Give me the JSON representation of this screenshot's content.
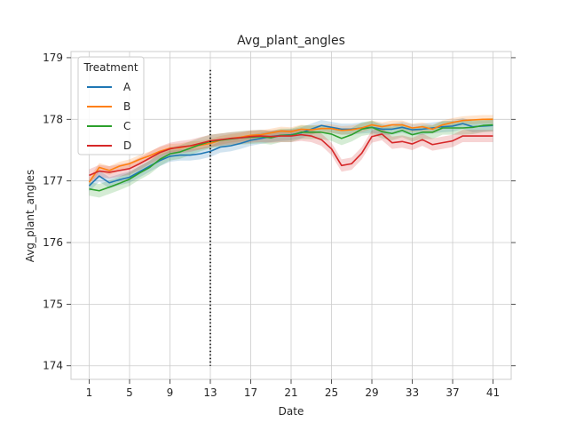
{
  "chart_data": {
    "type": "line",
    "title": "Avg_plant_angles",
    "xlabel": "Date",
    "ylabel": "Avg_plant_angles",
    "xlim": [
      -0.8,
      42.8
    ],
    "ylim": [
      173.78,
      179.1
    ],
    "xticks": [
      1,
      5,
      9,
      13,
      17,
      21,
      25,
      29,
      33,
      37,
      41
    ],
    "yticks": [
      174,
      175,
      176,
      177,
      178,
      179
    ],
    "grid": true,
    "legend": {
      "title": "Treatment",
      "placement": "top-left"
    },
    "vline": {
      "x": 13,
      "y_range": [
        174,
        178.8
      ],
      "style": "dotted",
      "color": "#000000"
    },
    "series": [
      {
        "name": "A",
        "color": "#1f77b4",
        "x": [
          1,
          2,
          3,
          4,
          5,
          6,
          7,
          8,
          9,
          10,
          11,
          12,
          13,
          14,
          15,
          16,
          17,
          18,
          19,
          20,
          21,
          22,
          23,
          24,
          25,
          26,
          27,
          28,
          29,
          30,
          31,
          32,
          33,
          34,
          35,
          36,
          37,
          38,
          39,
          40,
          41
        ],
        "values": [
          176.92,
          177.08,
          176.97,
          177.02,
          177.06,
          177.15,
          177.24,
          177.33,
          177.4,
          177.42,
          177.42,
          177.44,
          177.48,
          177.55,
          177.57,
          177.61,
          177.66,
          177.69,
          177.72,
          177.74,
          177.75,
          177.78,
          177.84,
          177.9,
          177.87,
          177.84,
          177.84,
          177.86,
          177.87,
          177.84,
          177.84,
          177.87,
          177.83,
          177.84,
          177.86,
          177.88,
          177.89,
          177.93,
          177.88,
          177.89,
          177.9
        ],
        "ci": 0.09
      },
      {
        "name": "B",
        "color": "#ff7f0e",
        "x": [
          1,
          2,
          3,
          4,
          5,
          6,
          7,
          8,
          9,
          10,
          11,
          12,
          13,
          14,
          15,
          16,
          17,
          18,
          19,
          20,
          21,
          22,
          23,
          24,
          25,
          26,
          27,
          28,
          29,
          30,
          31,
          32,
          33,
          34,
          35,
          36,
          37,
          38,
          39,
          40,
          41
        ],
        "values": [
          176.98,
          177.22,
          177.17,
          177.24,
          177.28,
          177.35,
          177.41,
          177.48,
          177.53,
          177.54,
          177.57,
          177.58,
          177.61,
          177.66,
          177.69,
          177.71,
          177.74,
          177.75,
          177.78,
          177.81,
          177.8,
          177.84,
          177.83,
          177.85,
          177.85,
          177.82,
          177.83,
          177.86,
          177.91,
          177.88,
          177.91,
          177.91,
          177.86,
          177.88,
          177.84,
          177.91,
          177.95,
          177.98,
          177.99,
          178.0,
          178.0
        ],
        "ci": 0.07
      },
      {
        "name": "C",
        "color": "#2ca02c",
        "x": [
          1,
          2,
          3,
          4,
          5,
          6,
          7,
          8,
          9,
          10,
          11,
          12,
          13,
          14,
          15,
          16,
          17,
          18,
          19,
          20,
          21,
          22,
          23,
          24,
          25,
          26,
          27,
          28,
          29,
          30,
          31,
          32,
          33,
          34,
          35,
          36,
          37,
          38,
          39,
          40,
          41
        ],
        "values": [
          176.87,
          176.84,
          176.9,
          176.96,
          177.03,
          177.13,
          177.22,
          177.35,
          177.44,
          177.47,
          177.53,
          177.59,
          177.64,
          177.66,
          177.68,
          177.7,
          177.71,
          177.72,
          177.7,
          177.74,
          177.74,
          177.79,
          177.79,
          177.79,
          177.76,
          177.69,
          177.75,
          177.84,
          177.87,
          177.8,
          177.77,
          177.82,
          177.75,
          177.79,
          177.79,
          177.86,
          177.86,
          177.86,
          177.87,
          177.9,
          177.91
        ],
        "ci": 0.11
      },
      {
        "name": "D",
        "color": "#d62728",
        "x": [
          1,
          2,
          3,
          4,
          5,
          6,
          7,
          8,
          9,
          10,
          11,
          12,
          13,
          14,
          15,
          16,
          17,
          18,
          19,
          20,
          21,
          22,
          23,
          24,
          25,
          26,
          27,
          28,
          29,
          30,
          31,
          32,
          33,
          34,
          35,
          36,
          37,
          38,
          39,
          40,
          41
        ],
        "values": [
          177.09,
          177.16,
          177.14,
          177.17,
          177.2,
          177.28,
          177.37,
          177.46,
          177.52,
          177.55,
          177.57,
          177.61,
          177.65,
          177.67,
          177.69,
          177.7,
          177.72,
          177.73,
          177.72,
          177.73,
          177.73,
          177.75,
          177.73,
          177.67,
          177.52,
          177.25,
          177.28,
          177.45,
          177.72,
          177.76,
          177.62,
          177.64,
          177.6,
          177.67,
          177.59,
          177.62,
          177.65,
          177.73,
          177.73,
          177.73,
          177.73
        ],
        "ci": 0.1
      }
    ]
  }
}
